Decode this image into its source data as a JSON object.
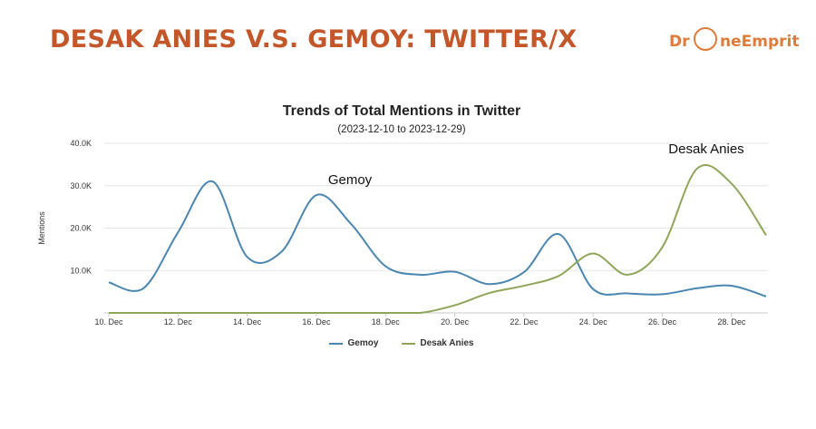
{
  "slide_title": "DESAK ANIES V.S. GEMOY: TWITTER/X",
  "logo": {
    "part1": "Dr",
    "part2": "neEmprit"
  },
  "colors": {
    "title": "#c4572a",
    "gemoy": "#4a86b0",
    "desak_anies": "#8fa65a",
    "grid": "#e6e6e6"
  },
  "chart_data": {
    "type": "line",
    "title": "Trends of Total Mentions in Twitter",
    "subtitle": "(2023-12-10 to 2023-12-29)",
    "xlabel": "",
    "ylabel": "Mentions",
    "x": [
      "10. Dec",
      "11. Dec",
      "12. Dec",
      "13. Dec",
      "14. Dec",
      "15. Dec",
      "16. Dec",
      "17. Dec",
      "18. Dec",
      "19. Dec",
      "20. Dec",
      "21. Dec",
      "22. Dec",
      "23. Dec",
      "24. Dec",
      "25. Dec",
      "26. Dec",
      "27. Dec",
      "28. Dec",
      "29. Dec"
    ],
    "xtick_labels": [
      "10. Dec",
      "12. Dec",
      "14. Dec",
      "16. Dec",
      "18. Dec",
      "20. Dec",
      "22. Dec",
      "24. Dec",
      "26. Dec",
      "28. Dec"
    ],
    "ylim": [
      0,
      40000
    ],
    "yticks": [
      10000,
      20000,
      30000,
      40000
    ],
    "ytick_labels": [
      "10.0K",
      "20.0K",
      "30.0K",
      "40.0K"
    ],
    "grid": true,
    "legend_position": "bottom",
    "series": [
      {
        "name": "Gemoy",
        "color": "#4a86b0",
        "values": [
          7200,
          5800,
          19000,
          31000,
          13200,
          14500,
          27800,
          21000,
          11000,
          9000,
          9700,
          6800,
          9600,
          18600,
          5600,
          4600,
          4400,
          5800,
          6400,
          3900
        ]
      },
      {
        "name": "Desak Anies",
        "color": "#8fa65a",
        "values": [
          0,
          0,
          0,
          0,
          0,
          0,
          0,
          0,
          0,
          0,
          1800,
          4700,
          6400,
          8700,
          14000,
          9000,
          15500,
          34000,
          30500,
          18300
        ]
      }
    ],
    "annotations": [
      {
        "text": "Gemoy",
        "series": "Gemoy",
        "x": "16. Dec"
      },
      {
        "text": "Desak Anies",
        "series": "Desak Anies",
        "x": "27. Dec"
      }
    ]
  }
}
